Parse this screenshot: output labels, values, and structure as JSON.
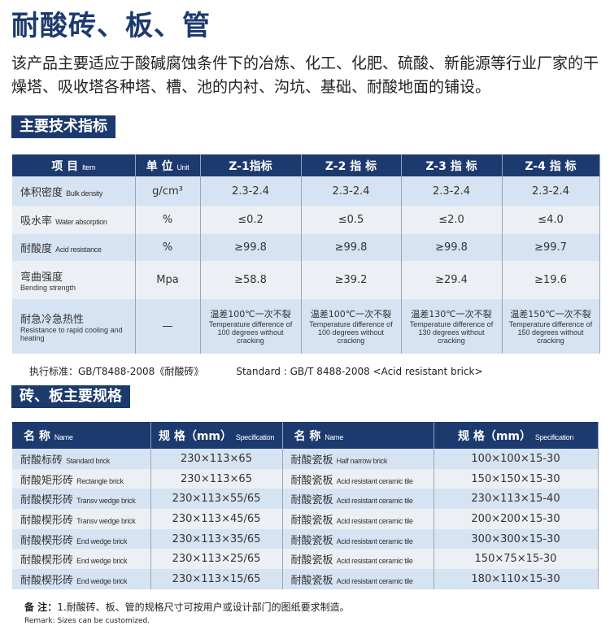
{
  "title": "耐酸砖、板、管",
  "description": "该产品主要适应于酸碱腐蚀条件下的冶炼、化工、化肥、硫酸、新能源等行业厂家的干燥塔、吸收塔各种塔、槽、池的内衬、沟坑、基础、耐酸地面的铺设。",
  "section1": "主要技术指标",
  "tech": {
    "headers": [
      {
        "cn": "项 目",
        "en": "Item"
      },
      {
        "cn": "单 位",
        "en": "Unit"
      },
      {
        "cn": "Z-1指标",
        "en": ""
      },
      {
        "cn": "Z-2 指 标",
        "en": ""
      },
      {
        "cn": "Z-3 指 标",
        "en": ""
      },
      {
        "cn": "Z-4 指 标",
        "en": ""
      }
    ],
    "rows": [
      {
        "cn": "体积密度",
        "en": "Bulk density",
        "unit": "g/cm³",
        "v": [
          "2.3-2.4",
          "2.3-2.4",
          "2.3-2.4",
          "2.3-2.4"
        ]
      },
      {
        "cn": "吸水率",
        "en": "Water absorption",
        "unit": "%",
        "v": [
          "≤0.2",
          "≤0.5",
          "≤2.0",
          "≤4.0"
        ]
      },
      {
        "cn": "耐酸度",
        "en": "Acid resistance",
        "unit": "%",
        "v": [
          "≥99.8",
          "≥99.8",
          "≥99.8",
          "≥99.7"
        ]
      },
      {
        "cn": "弯曲强度",
        "en": "Bending strength",
        "unit": "Mpa",
        "v": [
          "≥58.8",
          "≥39.2",
          "≥29.4",
          "≥19.6"
        ]
      },
      {
        "cn": "耐急冷急热性",
        "en": "Resistance to rapid cooling and heating",
        "unit": "—",
        "v": [
          {
            "cn": "温差100℃一次不裂",
            "en": "Temperature difference of 100 degrees without cracking"
          },
          {
            "cn": "温差100℃一次不裂",
            "en": "Temperature difference of 100 degrees without cracking"
          },
          {
            "cn": "温差130℃一次不裂",
            "en": "Temperature difference of 130 degrees without cracking"
          },
          {
            "cn": "温差150℃一次不裂",
            "en": "Temperature difference of 150 degrees without cracking"
          }
        ]
      }
    ]
  },
  "standard_cn": "执行标准：GB/T8488-2008《耐酸砖》",
  "standard_en": "Standard : GB/T 8488-2008 <Acid resistant brick>",
  "section2": "砖、板主要规格",
  "spec": {
    "headers": [
      {
        "cn": "名 称",
        "en": "Name"
      },
      {
        "cn": "规 格（mm）",
        "en": "Specification"
      },
      {
        "cn": "名 称",
        "en": "Name"
      },
      {
        "cn": "规 格（mm）",
        "en": "Specification"
      }
    ],
    "rows": [
      {
        "n1": "耐酸标砖",
        "e1": "Standard brick",
        "s1": "230×113×65",
        "n2": "耐酸瓷板",
        "e2": "Half narrow brick",
        "s2": "100×100×15-30"
      },
      {
        "n1": "耐酸矩形砖",
        "e1": "Rectangle brick",
        "s1": "230×113×65",
        "n2": "耐酸瓷板",
        "e2": "Acid resistant ceramic tile",
        "s2": "150×150×15-30"
      },
      {
        "n1": "耐酸楔形砖",
        "e1": "Transv wedge brick",
        "s1": "230×113×55/65",
        "n2": "耐酸瓷板",
        "e2": "Acid resistant ceramic tile",
        "s2": "230×113×15-40"
      },
      {
        "n1": "耐酸楔形砖",
        "e1": "Transv wedge brick",
        "s1": "230×113×45/65",
        "n2": "耐酸瓷板",
        "e2": "Acid resistant ceramic tile",
        "s2": "200×200×15-30"
      },
      {
        "n1": "耐酸楔形砖",
        "e1": "End wedge brick",
        "s1": "230×113×35/65",
        "n2": "耐酸瓷板",
        "e2": "Acid resistant ceramic tile",
        "s2": "300×300×15-30"
      },
      {
        "n1": "耐酸楔形砖",
        "e1": "End wedge brick",
        "s1": "230×113×25/65",
        "n2": "耐酸瓷板",
        "e2": "Acid resistant ceramic tile",
        "s2": "150×75×15-30"
      },
      {
        "n1": "耐酸楔形砖",
        "e1": "End wedge brick",
        "s1": "230×113×15/65",
        "n2": "耐酸瓷板",
        "e2": "Acid resistant ceramic tile",
        "s2": "180×110×15-30"
      }
    ]
  },
  "remark_label": "备 注：",
  "remark_cn": "1.耐酸砖、板、管的规格尺寸可按用户或设计部门的图纸要求制造。",
  "remark_en": "Remark: Sizes can be customized.",
  "colors": {
    "header": "#1d3a6e",
    "row_a": "#d5e3f2",
    "row_b": "#eceff3"
  }
}
